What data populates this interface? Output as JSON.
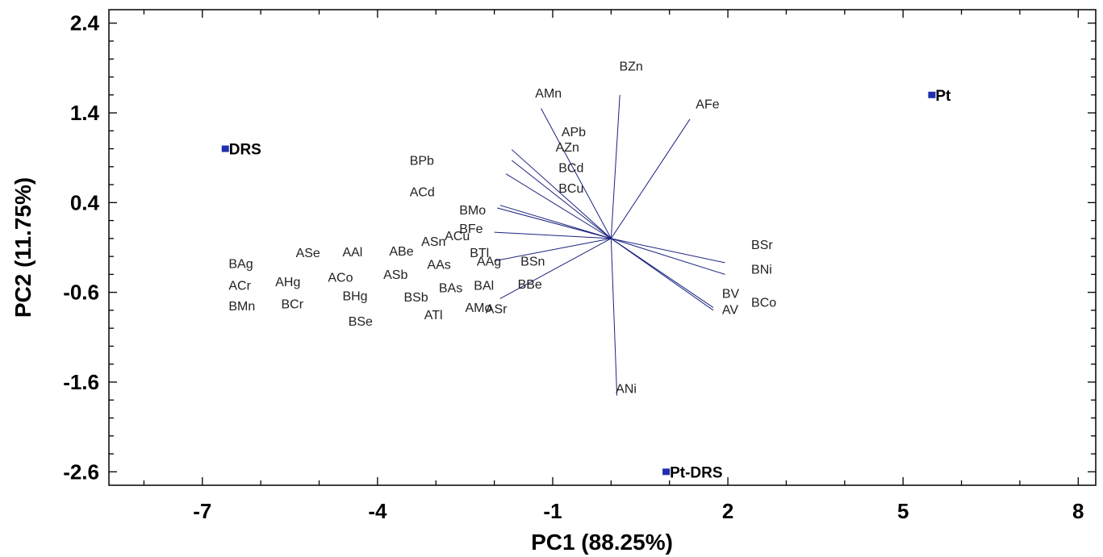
{
  "chart_data": {
    "type": "scatter",
    "subtype": "pca-biplot",
    "title": "",
    "xlabel": "PC1 (88.25%)",
    "ylabel": "PC2 (11.75%)",
    "xlim": [
      -8.6,
      8.3
    ],
    "ylim": [
      -2.75,
      2.55
    ],
    "xticks": [
      -7,
      -4,
      -1,
      2,
      5,
      8
    ],
    "yticks": [
      2.4,
      1.4,
      0.4,
      -0.6,
      -1.6,
      -2.6
    ],
    "xtick_labels": [
      "-7",
      "-4",
      "-1",
      "2",
      "5",
      "8"
    ],
    "ytick_labels": [
      "2.4",
      "1.4",
      "0.4",
      "-0.6",
      "-1.6",
      "-2.6"
    ],
    "grid": false,
    "colors": {
      "vector": "#1a237e",
      "point": "#1f2fb0",
      "axis": "#000000"
    },
    "vector_origin": [
      0.0,
      0.0
    ],
    "observations": [
      {
        "label": "DRS",
        "x": -6.6,
        "y": 1.0
      },
      {
        "label": "Pt",
        "x": 5.5,
        "y": 1.6
      },
      {
        "label": "Pt-DRS",
        "x": 0.95,
        "y": -2.6
      }
    ],
    "variables": [
      {
        "label": "BZn",
        "x": 0.15,
        "y": 1.6
      },
      {
        "label": "AMn",
        "x": -1.2,
        "y": 1.45
      },
      {
        "label": "AFe",
        "x": 1.35,
        "y": 1.33
      },
      {
        "label": "APb",
        "x": -1.7,
        "y": 0.99
      },
      {
        "label": "AZn",
        "x": -1.7,
        "y": 0.87
      },
      {
        "label": "BPb",
        "x": 0.0,
        "y": 0.0
      },
      {
        "label": "BCd",
        "x": -1.8,
        "y": 0.72
      },
      {
        "label": "ACd",
        "x": 0.0,
        "y": 0.0
      },
      {
        "label": "BCu",
        "x": -1.9,
        "y": 0.37
      },
      {
        "label": "BMo",
        "x": -1.95,
        "y": 0.34
      },
      {
        "label": "BFe",
        "x": -2.0,
        "y": 0.07
      },
      {
        "label": "ACu",
        "x": 0.0,
        "y": 0.0
      },
      {
        "label": "BTl",
        "x": -2.0,
        "y": -0.25
      },
      {
        "label": "AMo",
        "x": -1.9,
        "y": -0.67
      },
      {
        "label": "ANi",
        "x": 0.1,
        "y": -1.75
      },
      {
        "label": "BSr",
        "x": 1.95,
        "y": -0.27
      },
      {
        "label": "BNi",
        "x": 1.95,
        "y": -0.4
      },
      {
        "label": "BV",
        "x": 1.75,
        "y": -0.77
      },
      {
        "label": "AV",
        "x": 1.75,
        "y": -0.8
      },
      {
        "label": "BCo",
        "x": 0.0,
        "y": 0.0
      },
      {
        "label": "BAg",
        "x": 0.0,
        "y": 0.0
      },
      {
        "label": "ASe",
        "x": 0.0,
        "y": 0.0
      },
      {
        "label": "AAl",
        "x": 0.0,
        "y": 0.0
      },
      {
        "label": "ABe",
        "x": 0.0,
        "y": 0.0
      },
      {
        "label": "ASn",
        "x": 0.0,
        "y": 0.0
      },
      {
        "label": "ACr",
        "x": 0.0,
        "y": 0.0
      },
      {
        "label": "AHg",
        "x": 0.0,
        "y": 0.0
      },
      {
        "label": "ACo",
        "x": 0.0,
        "y": 0.0
      },
      {
        "label": "ASb",
        "x": 0.0,
        "y": 0.0
      },
      {
        "label": "AAs",
        "x": 0.0,
        "y": 0.0
      },
      {
        "label": "AAg",
        "x": 0.0,
        "y": 0.0
      },
      {
        "label": "BSn",
        "x": 0.0,
        "y": 0.0
      },
      {
        "label": "BMn",
        "x": 0.0,
        "y": 0.0
      },
      {
        "label": "BCr",
        "x": 0.0,
        "y": 0.0
      },
      {
        "label": "BHg",
        "x": 0.0,
        "y": 0.0
      },
      {
        "label": "BSb",
        "x": 0.0,
        "y": 0.0
      },
      {
        "label": "BAs",
        "x": 0.0,
        "y": 0.0
      },
      {
        "label": "BAl",
        "x": 0.0,
        "y": 0.0
      },
      {
        "label": "BBe",
        "x": 0.0,
        "y": 0.0
      },
      {
        "label": "BSe",
        "x": 0.0,
        "y": 0.0
      },
      {
        "label": "ATl",
        "x": 0.0,
        "y": 0.0
      },
      {
        "label": "ASr",
        "x": 0.0,
        "y": 0.0
      }
    ],
    "variable_label_positions": {
      "BZn": [
        0.14,
        1.87
      ],
      "AMn": [
        -1.3,
        1.57
      ],
      "AFe": [
        1.45,
        1.45
      ],
      "APb": [
        -0.85,
        1.14
      ],
      "AZn": [
        -0.95,
        0.97
      ],
      "BPb": [
        -3.45,
        0.82
      ],
      "BCd": [
        -0.9,
        0.74
      ],
      "ACd": [
        -3.45,
        0.47
      ],
      "BCu": [
        -0.9,
        0.51
      ],
      "BMo": [
        -2.6,
        0.27
      ],
      "BFe": [
        -2.6,
        0.06
      ],
      "ACu": [
        -2.85,
        -0.02
      ],
      "BTl": [
        -2.42,
        -0.21
      ],
      "AMo": [
        -2.5,
        -0.82
      ],
      "ANi": [
        0.08,
        -1.72
      ],
      "BSr": [
        2.4,
        -0.12
      ],
      "BNi": [
        2.4,
        -0.39
      ],
      "BV": [
        1.9,
        -0.66
      ],
      "AV": [
        1.9,
        -0.84
      ],
      "BCo": [
        2.4,
        -0.76
      ],
      "BAg": [
        -6.55,
        -0.33
      ],
      "ASe": [
        -5.4,
        -0.21
      ],
      "AAl": [
        -4.6,
        -0.2
      ],
      "ABe": [
        -3.8,
        -0.19
      ],
      "ASn": [
        -3.25,
        -0.08
      ],
      "ACr": [
        -6.55,
        -0.57
      ],
      "AHg": [
        -5.75,
        -0.53
      ],
      "ACo": [
        -4.85,
        -0.48
      ],
      "ASb": [
        -3.9,
        -0.45
      ],
      "AAs": [
        -3.15,
        -0.34
      ],
      "AAg": [
        -2.3,
        -0.3
      ],
      "BSn": [
        -1.55,
        -0.3
      ],
      "BMn": [
        -6.55,
        -0.8
      ],
      "BCr": [
        -5.65,
        -0.78
      ],
      "BHg": [
        -4.6,
        -0.69
      ],
      "BSb": [
        -3.55,
        -0.7
      ],
      "BAs": [
        -2.95,
        -0.6
      ],
      "BAl": [
        -2.35,
        -0.57
      ],
      "BBe": [
        -1.6,
        -0.56
      ],
      "BSe": [
        -4.5,
        -0.97
      ],
      "ATl": [
        -3.2,
        -0.9
      ],
      "ASr": [
        -2.15,
        -0.83
      ]
    }
  }
}
